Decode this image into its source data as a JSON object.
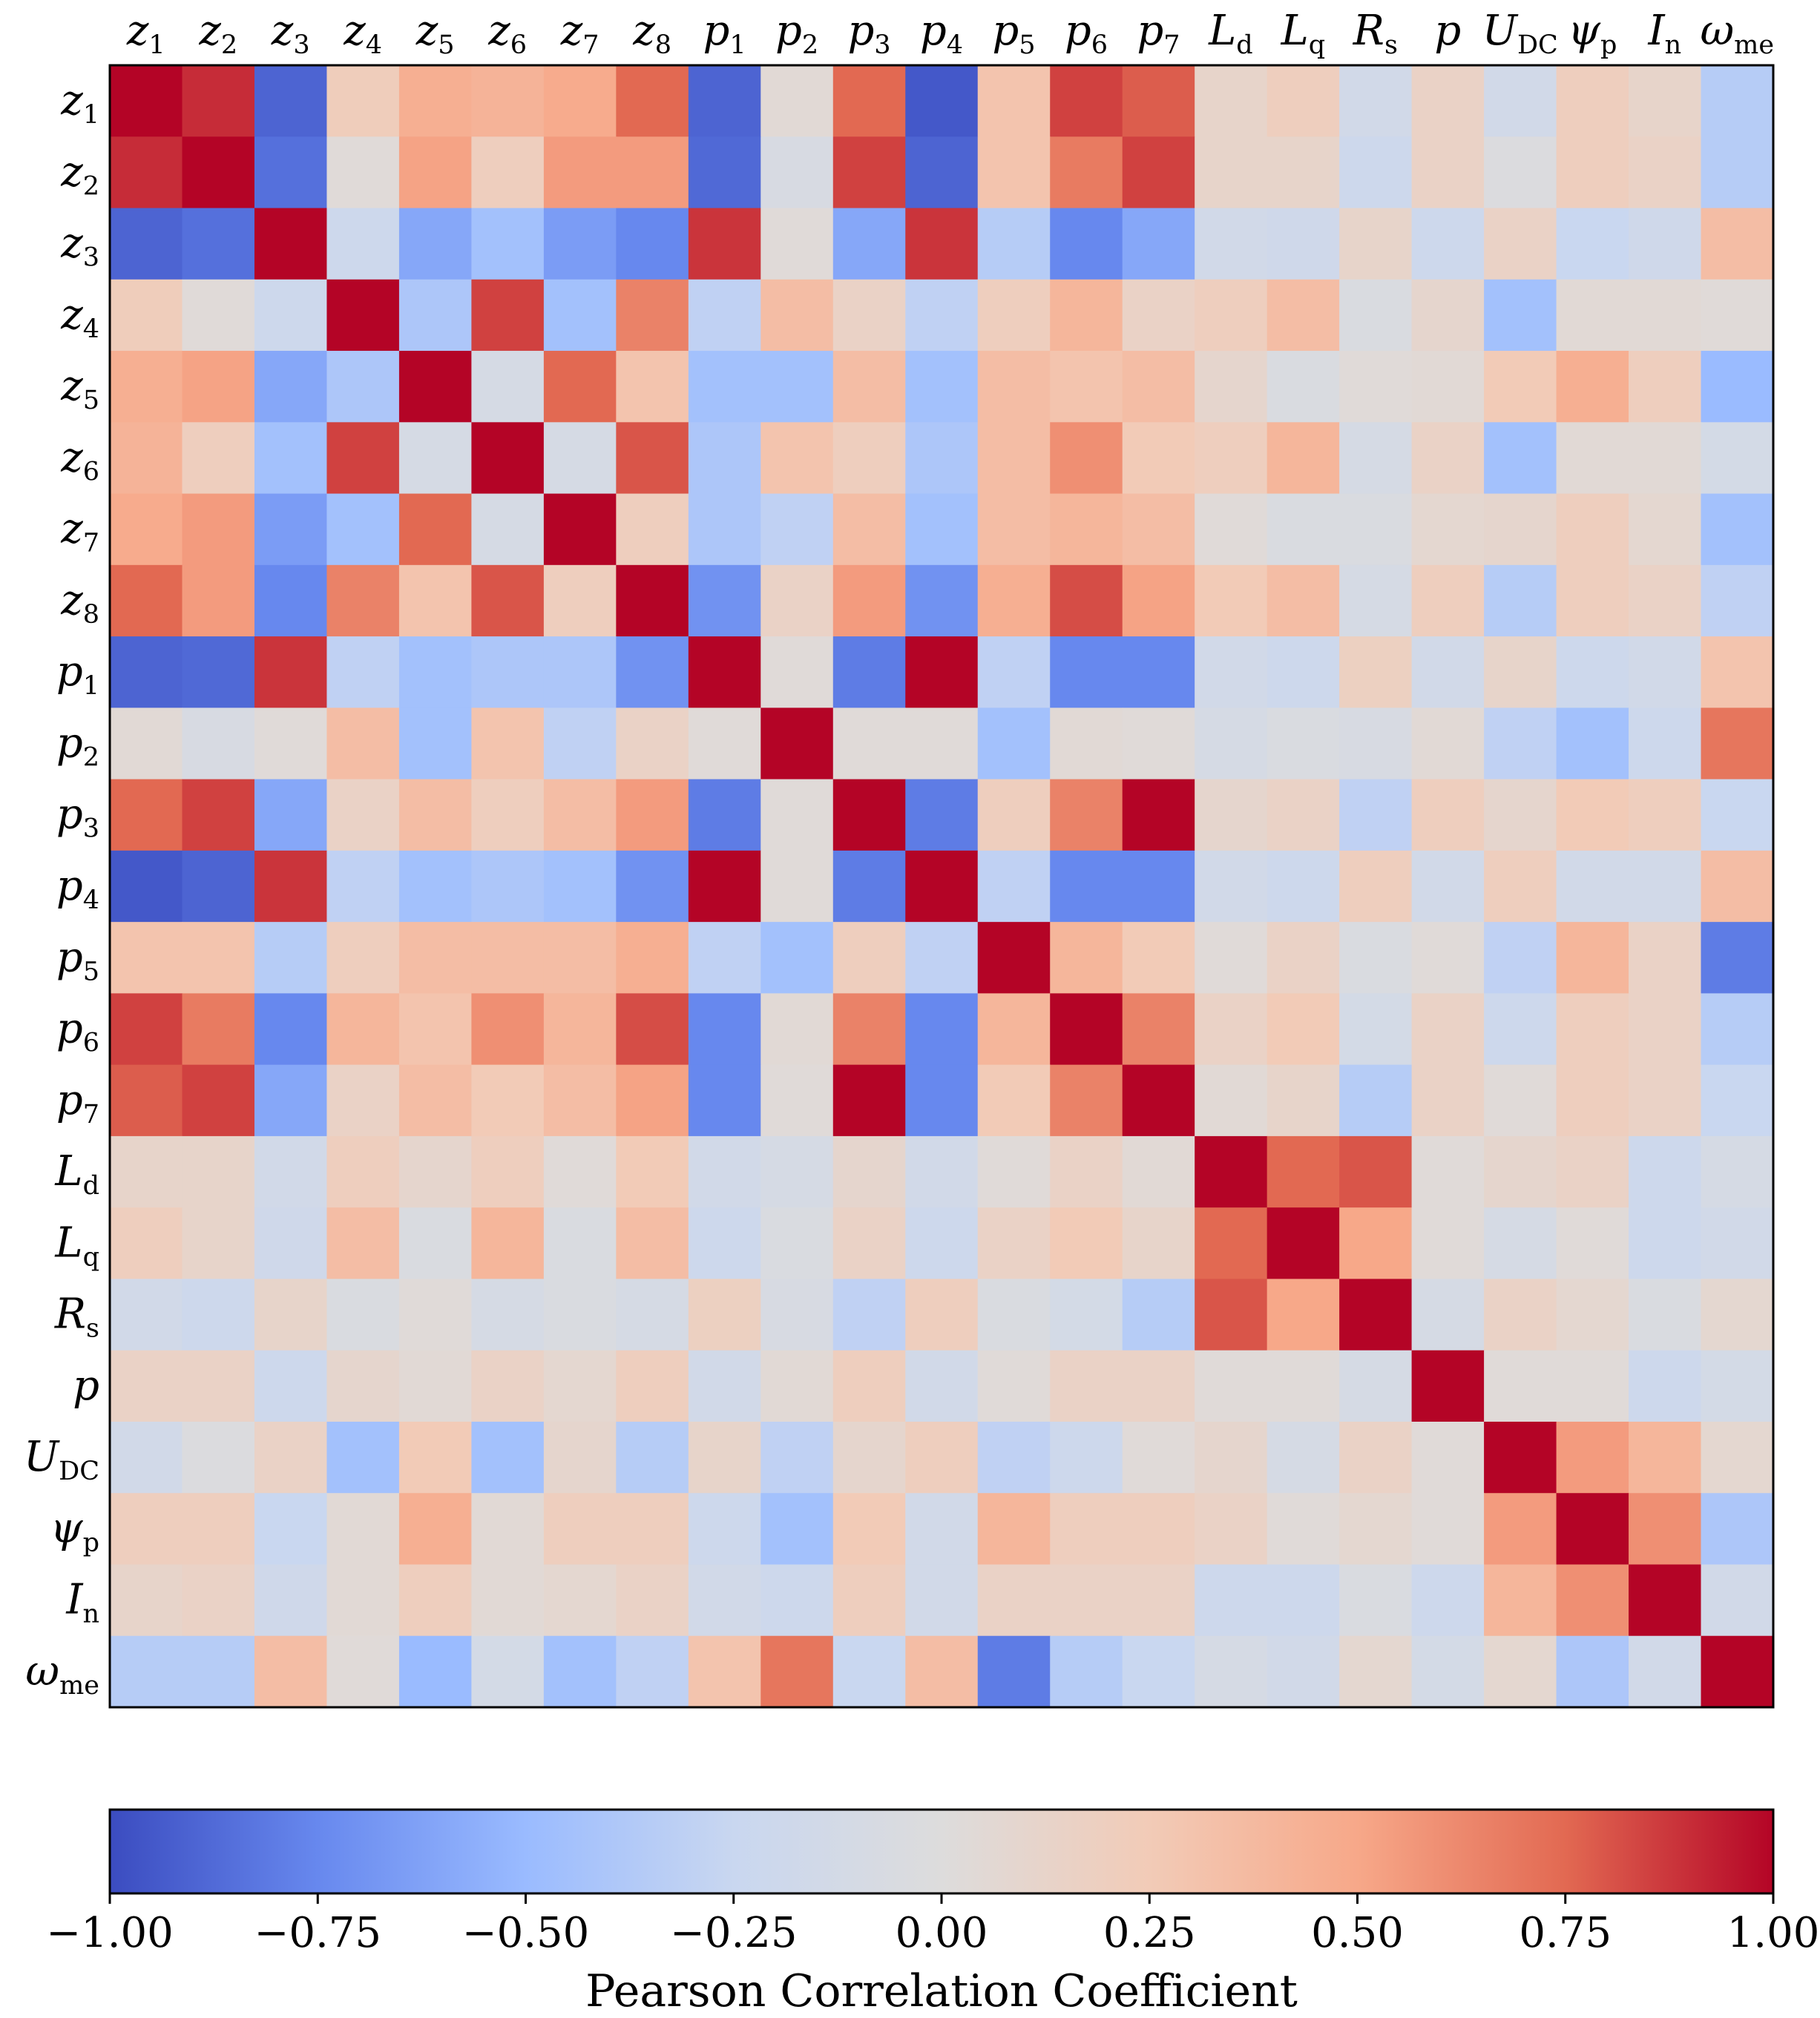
{
  "chart_data": {
    "type": "heatmap",
    "title": "",
    "xlabel": "",
    "ylabel": "",
    "labels": [
      {
        "base": "z",
        "sub": "1",
        "italic_sub": false
      },
      {
        "base": "z",
        "sub": "2",
        "italic_sub": false
      },
      {
        "base": "z",
        "sub": "3",
        "italic_sub": false
      },
      {
        "base": "z",
        "sub": "4",
        "italic_sub": false
      },
      {
        "base": "z",
        "sub": "5",
        "italic_sub": false
      },
      {
        "base": "z",
        "sub": "6",
        "italic_sub": false
      },
      {
        "base": "z",
        "sub": "7",
        "italic_sub": false
      },
      {
        "base": "z",
        "sub": "8",
        "italic_sub": false
      },
      {
        "base": "p",
        "sub": "1",
        "italic_sub": false
      },
      {
        "base": "p",
        "sub": "2",
        "italic_sub": false
      },
      {
        "base": "p",
        "sub": "3",
        "italic_sub": false
      },
      {
        "base": "p",
        "sub": "4",
        "italic_sub": false
      },
      {
        "base": "p",
        "sub": "5",
        "italic_sub": false
      },
      {
        "base": "p",
        "sub": "6",
        "italic_sub": false
      },
      {
        "base": "p",
        "sub": "7",
        "italic_sub": false
      },
      {
        "base": "L",
        "sub": "d",
        "italic_sub": false
      },
      {
        "base": "L",
        "sub": "q",
        "italic_sub": false
      },
      {
        "base": "R",
        "sub": "s",
        "italic_sub": false
      },
      {
        "base": "p",
        "sub": "",
        "italic_sub": false
      },
      {
        "base": "U",
        "sub": "DC",
        "italic_sub": false
      },
      {
        "base": "ψ",
        "sub": "p",
        "italic_sub": false
      },
      {
        "base": "I",
        "sub": "n",
        "italic_sub": false
      },
      {
        "base": "ω",
        "sub": "me",
        "italic_sub": false
      }
    ],
    "matrix": [
      [
        1.0,
        0.9,
        -0.9,
        0.22,
        0.45,
        0.42,
        0.48,
        0.75,
        -0.9,
        0.05,
        0.75,
        -0.95,
        0.3,
        0.85,
        0.78,
        0.12,
        0.2,
        -0.15,
        0.15,
        -0.15,
        0.2,
        0.12,
        -0.35
      ],
      [
        0.9,
        1.0,
        -0.85,
        0.03,
        0.52,
        0.2,
        0.55,
        0.55,
        -0.88,
        -0.08,
        0.85,
        -0.9,
        0.3,
        0.68,
        0.85,
        0.12,
        0.12,
        -0.2,
        0.15,
        -0.03,
        0.2,
        0.15,
        -0.35
      ],
      [
        -0.9,
        -0.85,
        1.0,
        -0.2,
        -0.6,
        -0.45,
        -0.65,
        -0.75,
        0.88,
        0.03,
        -0.6,
        0.88,
        -0.35,
        -0.75,
        -0.6,
        -0.15,
        -0.18,
        0.12,
        -0.2,
        0.15,
        -0.25,
        -0.18,
        0.35
      ],
      [
        0.22,
        0.03,
        -0.2,
        1.0,
        -0.4,
        0.85,
        -0.45,
        0.65,
        -0.3,
        0.35,
        0.15,
        -0.3,
        0.2,
        0.4,
        0.15,
        0.2,
        0.35,
        -0.05,
        0.1,
        -0.45,
        0.05,
        0.05,
        0.03
      ],
      [
        0.45,
        0.52,
        -0.6,
        -0.4,
        1.0,
        -0.1,
        0.75,
        0.3,
        -0.45,
        -0.45,
        0.35,
        -0.45,
        0.35,
        0.3,
        0.35,
        0.1,
        -0.05,
        0.03,
        0.05,
        0.25,
        0.45,
        0.2,
        -0.5
      ],
      [
        0.42,
        0.2,
        -0.45,
        0.85,
        -0.1,
        1.0,
        -0.1,
        0.8,
        -0.4,
        0.3,
        0.2,
        -0.4,
        0.35,
        0.6,
        0.25,
        0.2,
        0.4,
        -0.1,
        0.15,
        -0.45,
        0.05,
        0.05,
        -0.12
      ],
      [
        0.48,
        0.55,
        -0.65,
        -0.45,
        0.75,
        -0.1,
        1.0,
        0.2,
        -0.4,
        -0.3,
        0.35,
        -0.45,
        0.35,
        0.4,
        0.35,
        0.03,
        -0.05,
        -0.05,
        0.08,
        0.1,
        0.2,
        0.08,
        -0.45
      ],
      [
        0.75,
        0.55,
        -0.75,
        0.65,
        0.3,
        0.8,
        0.2,
        1.0,
        -0.7,
        0.15,
        0.55,
        -0.7,
        0.45,
        0.82,
        0.52,
        0.25,
        0.35,
        -0.1,
        0.2,
        -0.35,
        0.2,
        0.15,
        -0.3
      ],
      [
        -0.9,
        -0.88,
        0.88,
        -0.3,
        -0.45,
        -0.4,
        -0.4,
        -0.7,
        1.0,
        0.03,
        -0.8,
        1.0,
        -0.3,
        -0.75,
        -0.75,
        -0.15,
        -0.2,
        0.18,
        -0.15,
        0.12,
        -0.2,
        -0.15,
        0.3
      ],
      [
        0.05,
        -0.08,
        0.03,
        0.35,
        -0.45,
        0.3,
        -0.3,
        0.15,
        0.03,
        1.0,
        0.03,
        0.03,
        -0.45,
        0.05,
        0.03,
        -0.1,
        -0.05,
        -0.08,
        0.05,
        -0.3,
        -0.45,
        -0.2,
        0.7
      ],
      [
        0.75,
        0.85,
        -0.6,
        0.15,
        0.35,
        0.2,
        0.35,
        0.55,
        -0.8,
        0.03,
        1.0,
        -0.8,
        0.2,
        0.65,
        1.0,
        0.1,
        0.15,
        -0.3,
        0.2,
        0.1,
        0.25,
        0.2,
        -0.25
      ],
      [
        -0.95,
        -0.9,
        0.88,
        -0.3,
        -0.45,
        -0.4,
        -0.45,
        -0.7,
        1.0,
        0.03,
        -0.8,
        1.0,
        -0.3,
        -0.75,
        -0.75,
        -0.15,
        -0.2,
        0.2,
        -0.15,
        0.2,
        -0.15,
        -0.15,
        0.35
      ],
      [
        0.3,
        0.3,
        -0.35,
        0.2,
        0.35,
        0.35,
        0.35,
        0.45,
        -0.3,
        -0.45,
        0.2,
        -0.3,
        1.0,
        0.4,
        0.25,
        0.03,
        0.15,
        -0.05,
        0.03,
        -0.3,
        0.4,
        0.15,
        -0.8
      ],
      [
        0.85,
        0.68,
        -0.75,
        0.4,
        0.3,
        0.6,
        0.4,
        0.82,
        -0.75,
        0.05,
        0.65,
        -0.75,
        0.4,
        1.0,
        0.65,
        0.15,
        0.25,
        -0.12,
        0.15,
        -0.2,
        0.2,
        0.15,
        -0.35
      ],
      [
        0.78,
        0.85,
        -0.6,
        0.15,
        0.35,
        0.25,
        0.35,
        0.52,
        -0.75,
        0.03,
        1.0,
        -0.75,
        0.25,
        0.65,
        1.0,
        0.05,
        0.12,
        -0.35,
        0.15,
        0.03,
        0.2,
        0.15,
        -0.25
      ],
      [
        0.12,
        0.12,
        -0.15,
        0.2,
        0.1,
        0.2,
        0.03,
        0.25,
        -0.15,
        -0.1,
        0.1,
        -0.15,
        0.03,
        0.15,
        0.05,
        1.0,
        0.75,
        0.8,
        0.03,
        0.1,
        0.15,
        -0.2,
        -0.1
      ],
      [
        0.2,
        0.12,
        -0.18,
        0.35,
        -0.05,
        0.4,
        -0.05,
        0.35,
        -0.2,
        -0.05,
        0.15,
        -0.2,
        0.15,
        0.25,
        0.12,
        0.75,
        1.0,
        0.5,
        0.03,
        -0.1,
        0.03,
        -0.2,
        -0.15
      ],
      [
        -0.15,
        -0.2,
        0.12,
        -0.05,
        0.03,
        -0.1,
        -0.05,
        -0.1,
        0.18,
        -0.08,
        -0.3,
        0.2,
        -0.05,
        -0.12,
        -0.35,
        0.8,
        0.5,
        1.0,
        -0.1,
        0.15,
        0.08,
        -0.05,
        0.08
      ],
      [
        0.15,
        0.15,
        -0.2,
        0.1,
        0.05,
        0.15,
        0.08,
        0.2,
        -0.15,
        0.05,
        0.2,
        -0.15,
        0.03,
        0.15,
        0.15,
        0.03,
        0.03,
        -0.1,
        1.0,
        0.03,
        0.03,
        -0.2,
        -0.12
      ],
      [
        -0.15,
        -0.03,
        0.15,
        -0.45,
        0.25,
        -0.45,
        0.1,
        -0.35,
        0.12,
        -0.3,
        0.1,
        0.2,
        -0.3,
        -0.2,
        0.03,
        0.1,
        -0.1,
        0.15,
        0.03,
        1.0,
        0.55,
        0.4,
        0.08
      ],
      [
        0.2,
        0.2,
        -0.25,
        0.05,
        0.45,
        0.05,
        0.2,
        0.2,
        -0.2,
        -0.45,
        0.25,
        -0.15,
        0.4,
        0.2,
        0.2,
        0.15,
        0.03,
        0.08,
        0.03,
        0.55,
        1.0,
        0.6,
        -0.4
      ],
      [
        0.12,
        0.15,
        -0.18,
        0.05,
        0.2,
        0.05,
        0.08,
        0.15,
        -0.15,
        -0.2,
        0.2,
        -0.15,
        0.15,
        0.15,
        0.15,
        -0.2,
        -0.2,
        -0.05,
        -0.2,
        0.4,
        0.6,
        1.0,
        -0.15
      ],
      [
        -0.35,
        -0.35,
        0.35,
        0.03,
        -0.5,
        -0.12,
        -0.45,
        -0.3,
        0.3,
        0.7,
        -0.25,
        0.35,
        -0.8,
        -0.35,
        -0.25,
        -0.1,
        -0.15,
        0.08,
        -0.12,
        0.08,
        -0.4,
        -0.15,
        1.0
      ]
    ],
    "zlim": [
      -1.0,
      1.0
    ],
    "colormap": "coolwarm",
    "colormap_stops": [
      "#3b4cc0",
      "#6788ee",
      "#9abbff",
      "#c9d7f0",
      "#dddcdc",
      "#f2cbb7",
      "#f7a889",
      "#e26952",
      "#b40426"
    ],
    "colorbar": {
      "label": "Pearson Correlation Coefficient",
      "ticks": [
        "−1.00",
        "−0.75",
        "−0.50",
        "−0.25",
        "0.00",
        "0.25",
        "0.50",
        "0.75",
        "1.00"
      ],
      "orientation": "horizontal",
      "placement": "bottom"
    },
    "grid": false,
    "legend": "none"
  }
}
